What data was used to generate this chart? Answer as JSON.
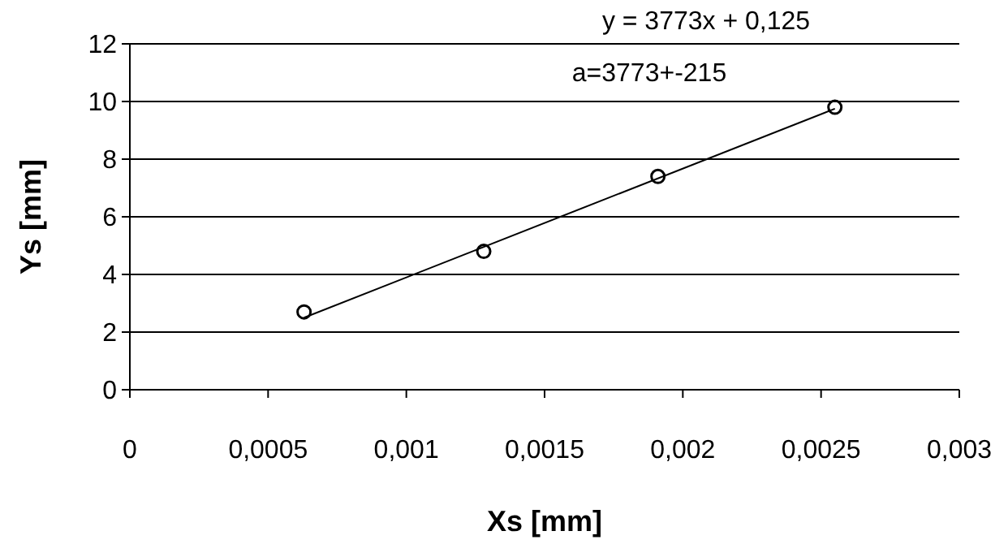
{
  "chart_data": {
    "type": "scatter",
    "xlabel": "Xs [mm]",
    "ylabel": "Ys [mm]",
    "xlim": [
      0,
      0.003
    ],
    "ylim": [
      0,
      12
    ],
    "xticks": [
      0,
      {
        "value": 0.0005,
        "label": "0,0005"
      },
      {
        "value": 0.001,
        "label": "0,001"
      },
      {
        "value": 0.0015,
        "label": "0,0015"
      },
      {
        "value": 0.002,
        "label": "0,002"
      },
      {
        "value": 0.0025,
        "label": "0,0025"
      },
      {
        "value": 0.003,
        "label": "0,003"
      }
    ],
    "yticks": [
      0,
      2,
      4,
      6,
      8,
      10,
      12
    ],
    "grid": "y",
    "marker": "circle",
    "annotations": [
      "y = 3773x + 0,125",
      "a=3773+-215"
    ],
    "series": [
      {
        "color": "#000000",
        "x": [
          0.00063,
          0.00128,
          0.00191,
          0.00255
        ],
        "values": [
          2.7,
          4.8,
          7.4,
          9.8
        ]
      },
      {
        "type": "line",
        "color": "#000000",
        "marker": "none",
        "x": [
          0.00063,
          0.00255
        ],
        "values": [
          2.5,
          9.75
        ]
      }
    ]
  }
}
